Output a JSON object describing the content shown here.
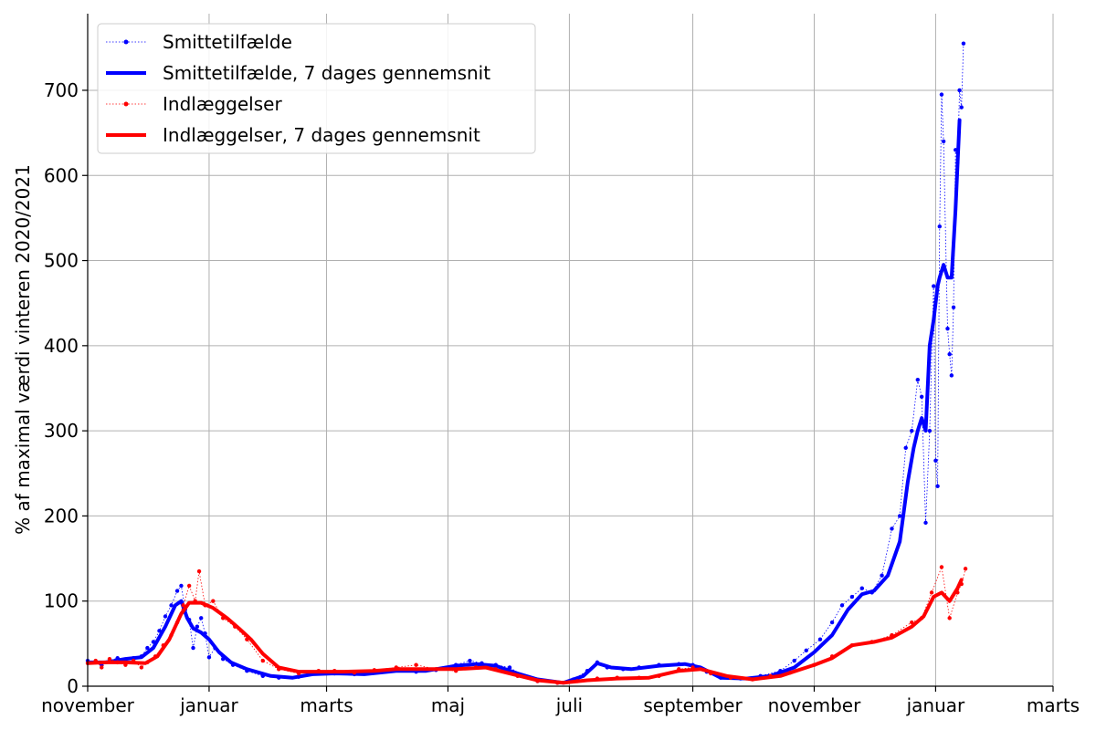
{
  "chart_data": {
    "type": "line",
    "ylabel": "% af maximal værdi vinteren 2020/2021",
    "xlim": [
      "2020-11-01",
      "2022-03-01"
    ],
    "ylim": [
      0,
      790
    ],
    "x_ticks": [
      {
        "date": "2020-11-01",
        "label": "november"
      },
      {
        "date": "2021-01-01",
        "label": "januar"
      },
      {
        "date": "2021-03-01",
        "label": "marts"
      },
      {
        "date": "2021-05-01",
        "label": "maj"
      },
      {
        "date": "2021-07-01",
        "label": "juli"
      },
      {
        "date": "2021-09-01",
        "label": "september"
      },
      {
        "date": "2021-11-01",
        "label": "november"
      },
      {
        "date": "2022-01-01",
        "label": "januar"
      },
      {
        "date": "2022-03-01",
        "label": "marts"
      }
    ],
    "y_ticks": [
      0,
      100,
      200,
      300,
      400,
      500,
      600,
      700
    ],
    "grid": true,
    "legend_position": "top-left",
    "series": [
      {
        "name": "Smittetilfælde",
        "style": "dotted-markers",
        "color": "#0000ff",
        "points": [
          [
            "2020-11-01",
            30
          ],
          [
            "2020-11-05",
            28
          ],
          [
            "2020-11-08",
            25
          ],
          [
            "2020-11-12",
            30
          ],
          [
            "2020-11-16",
            33
          ],
          [
            "2020-11-20",
            31
          ],
          [
            "2020-11-24",
            33
          ],
          [
            "2020-11-28",
            35
          ],
          [
            "2020-12-01",
            45
          ],
          [
            "2020-12-04",
            52
          ],
          [
            "2020-12-07",
            65
          ],
          [
            "2020-12-10",
            82
          ],
          [
            "2020-12-13",
            95
          ],
          [
            "2020-12-16",
            112
          ],
          [
            "2020-12-18",
            118
          ],
          [
            "2020-12-20",
            90
          ],
          [
            "2020-12-22",
            78
          ],
          [
            "2020-12-24",
            45
          ],
          [
            "2020-12-26",
            70
          ],
          [
            "2020-12-28",
            80
          ],
          [
            "2020-12-30",
            62
          ],
          [
            "2021-01-01",
            34
          ],
          [
            "2021-01-04",
            45
          ],
          [
            "2021-01-08",
            32
          ],
          [
            "2021-01-13",
            25
          ],
          [
            "2021-01-20",
            18
          ],
          [
            "2021-01-28",
            12
          ],
          [
            "2021-02-05",
            10
          ],
          [
            "2021-02-15",
            11
          ],
          [
            "2021-02-25",
            15
          ],
          [
            "2021-03-05",
            15
          ],
          [
            "2021-03-15",
            14
          ],
          [
            "2021-03-25",
            16
          ],
          [
            "2021-04-05",
            19
          ],
          [
            "2021-04-15",
            17
          ],
          [
            "2021-04-25",
            19
          ],
          [
            "2021-05-05",
            25
          ],
          [
            "2021-05-12",
            30
          ],
          [
            "2021-05-18",
            27
          ],
          [
            "2021-05-25",
            25
          ],
          [
            "2021-06-01",
            22
          ],
          [
            "2021-06-08",
            12
          ],
          [
            "2021-06-15",
            6
          ],
          [
            "2021-06-25",
            4
          ],
          [
            "2021-07-03",
            8
          ],
          [
            "2021-07-10",
            18
          ],
          [
            "2021-07-15",
            28
          ],
          [
            "2021-07-20",
            22
          ],
          [
            "2021-07-28",
            20
          ],
          [
            "2021-08-05",
            22
          ],
          [
            "2021-08-15",
            25
          ],
          [
            "2021-08-25",
            26
          ],
          [
            "2021-09-01",
            25
          ],
          [
            "2021-09-08",
            17
          ],
          [
            "2021-09-15",
            10
          ],
          [
            "2021-09-25",
            9
          ],
          [
            "2021-10-05",
            12
          ],
          [
            "2021-10-15",
            18
          ],
          [
            "2021-10-22",
            30
          ],
          [
            "2021-10-28",
            42
          ],
          [
            "2021-11-04",
            55
          ],
          [
            "2021-11-10",
            75
          ],
          [
            "2021-11-15",
            95
          ],
          [
            "2021-11-20",
            105
          ],
          [
            "2021-11-25",
            115
          ],
          [
            "2021-11-30",
            110
          ],
          [
            "2021-12-05",
            130
          ],
          [
            "2021-12-10",
            185
          ],
          [
            "2021-12-14",
            200
          ],
          [
            "2021-12-17",
            280
          ],
          [
            "2021-12-20",
            300
          ],
          [
            "2021-12-23",
            360
          ],
          [
            "2021-12-25",
            340
          ],
          [
            "2021-12-27",
            192
          ],
          [
            "2021-12-29",
            300
          ],
          [
            "2021-12-31",
            470
          ],
          [
            "2022-01-01",
            265
          ],
          [
            "2022-01-02",
            235
          ],
          [
            "2022-01-03",
            540
          ],
          [
            "2022-01-04",
            695
          ],
          [
            "2022-01-05",
            640
          ],
          [
            "2022-01-07",
            420
          ],
          [
            "2022-01-08",
            390
          ],
          [
            "2022-01-09",
            365
          ],
          [
            "2022-01-10",
            445
          ],
          [
            "2022-01-11",
            630
          ],
          [
            "2022-01-12",
            615
          ],
          [
            "2022-01-13",
            700
          ],
          [
            "2022-01-14",
            680
          ],
          [
            "2022-01-15",
            755
          ]
        ]
      },
      {
        "name": "Smittetilfælde, 7 dages gennemsnit",
        "style": "thick-line",
        "color": "#0000ff",
        "points": [
          [
            "2020-11-01",
            28
          ],
          [
            "2020-11-10",
            28
          ],
          [
            "2020-11-20",
            32
          ],
          [
            "2020-11-28",
            34
          ],
          [
            "2020-12-04",
            45
          ],
          [
            "2020-12-10",
            70
          ],
          [
            "2020-12-15",
            95
          ],
          [
            "2020-12-18",
            100
          ],
          [
            "2020-12-21",
            80
          ],
          [
            "2020-12-24",
            68
          ],
          [
            "2020-12-28",
            63
          ],
          [
            "2021-01-01",
            55
          ],
          [
            "2021-01-06",
            40
          ],
          [
            "2021-01-12",
            28
          ],
          [
            "2021-01-20",
            20
          ],
          [
            "2021-02-01",
            12
          ],
          [
            "2021-02-12",
            10
          ],
          [
            "2021-02-22",
            14
          ],
          [
            "2021-03-05",
            15
          ],
          [
            "2021-03-20",
            14
          ],
          [
            "2021-04-05",
            18
          ],
          [
            "2021-04-20",
            18
          ],
          [
            "2021-05-05",
            24
          ],
          [
            "2021-05-15",
            26
          ],
          [
            "2021-05-25",
            24
          ],
          [
            "2021-06-05",
            15
          ],
          [
            "2021-06-15",
            8
          ],
          [
            "2021-06-28",
            4
          ],
          [
            "2021-07-08",
            12
          ],
          [
            "2021-07-15",
            27
          ],
          [
            "2021-07-22",
            22
          ],
          [
            "2021-08-01",
            20
          ],
          [
            "2021-08-15",
            24
          ],
          [
            "2021-08-28",
            26
          ],
          [
            "2021-09-05",
            22
          ],
          [
            "2021-09-15",
            10
          ],
          [
            "2021-09-28",
            9
          ],
          [
            "2021-10-10",
            12
          ],
          [
            "2021-10-22",
            22
          ],
          [
            "2021-11-01",
            40
          ],
          [
            "2021-11-10",
            60
          ],
          [
            "2021-11-18",
            90
          ],
          [
            "2021-11-25",
            108
          ],
          [
            "2021-12-01",
            112
          ],
          [
            "2021-12-08",
            130
          ],
          [
            "2021-12-14",
            170
          ],
          [
            "2021-12-18",
            240
          ],
          [
            "2021-12-21",
            280
          ],
          [
            "2021-12-23",
            300
          ],
          [
            "2021-12-25",
            315
          ],
          [
            "2021-12-27",
            300
          ],
          [
            "2021-12-29",
            400
          ],
          [
            "2021-12-31",
            430
          ],
          [
            "2022-01-02",
            470
          ],
          [
            "2022-01-03",
            480
          ],
          [
            "2022-01-05",
            495
          ],
          [
            "2022-01-07",
            480
          ],
          [
            "2022-01-09",
            480
          ],
          [
            "2022-01-11",
            560
          ],
          [
            "2022-01-13",
            665
          ]
        ]
      },
      {
        "name": "Indlæggelser",
        "style": "dotted-markers",
        "color": "#ff0000",
        "points": [
          [
            "2020-11-01",
            27
          ],
          [
            "2020-11-05",
            30
          ],
          [
            "2020-11-08",
            22
          ],
          [
            "2020-11-12",
            32
          ],
          [
            "2020-11-16",
            28
          ],
          [
            "2020-11-20",
            25
          ],
          [
            "2020-11-24",
            30
          ],
          [
            "2020-11-28",
            22
          ],
          [
            "2020-12-01",
            28
          ],
          [
            "2020-12-05",
            35
          ],
          [
            "2020-12-09",
            48
          ],
          [
            "2020-12-13",
            60
          ],
          [
            "2020-12-16",
            75
          ],
          [
            "2020-12-19",
            95
          ],
          [
            "2020-12-22",
            118
          ],
          [
            "2020-12-25",
            100
          ],
          [
            "2020-12-27",
            135
          ],
          [
            "2020-12-30",
            95
          ],
          [
            "2021-01-03",
            100
          ],
          [
            "2021-01-08",
            80
          ],
          [
            "2021-01-14",
            70
          ],
          [
            "2021-01-20",
            55
          ],
          [
            "2021-01-28",
            30
          ],
          [
            "2021-02-05",
            20
          ],
          [
            "2021-02-15",
            15
          ],
          [
            "2021-02-25",
            18
          ],
          [
            "2021-03-05",
            18
          ],
          [
            "2021-03-15",
            16
          ],
          [
            "2021-03-25",
            19
          ],
          [
            "2021-04-05",
            22
          ],
          [
            "2021-04-15",
            25
          ],
          [
            "2021-04-25",
            20
          ],
          [
            "2021-05-05",
            18
          ],
          [
            "2021-05-15",
            22
          ],
          [
            "2021-05-25",
            20
          ],
          [
            "2021-06-05",
            12
          ],
          [
            "2021-06-15",
            6
          ],
          [
            "2021-06-25",
            4
          ],
          [
            "2021-07-05",
            6
          ],
          [
            "2021-07-15",
            9
          ],
          [
            "2021-07-25",
            10
          ],
          [
            "2021-08-05",
            10
          ],
          [
            "2021-08-15",
            12
          ],
          [
            "2021-08-25",
            20
          ],
          [
            "2021-09-01",
            22
          ],
          [
            "2021-09-10",
            15
          ],
          [
            "2021-09-20",
            10
          ],
          [
            "2021-10-01",
            8
          ],
          [
            "2021-10-10",
            12
          ],
          [
            "2021-10-20",
            16
          ],
          [
            "2021-11-01",
            25
          ],
          [
            "2021-11-10",
            35
          ],
          [
            "2021-11-20",
            48
          ],
          [
            "2021-11-30",
            52
          ],
          [
            "2021-12-10",
            60
          ],
          [
            "2021-12-20",
            75
          ],
          [
            "2021-12-25",
            80
          ],
          [
            "2021-12-30",
            110
          ],
          [
            "2022-01-04",
            140
          ],
          [
            "2022-01-08",
            80
          ],
          [
            "2022-01-12",
            110
          ],
          [
            "2022-01-14",
            120
          ],
          [
            "2022-01-16",
            138
          ]
        ]
      },
      {
        "name": "Indlæggelser, 7 dages gennemsnit",
        "style": "thick-line",
        "color": "#ff0000",
        "points": [
          [
            "2020-11-01",
            27
          ],
          [
            "2020-11-10",
            28
          ],
          [
            "2020-11-20",
            28
          ],
          [
            "2020-11-30",
            27
          ],
          [
            "2020-12-06",
            35
          ],
          [
            "2020-12-12",
            55
          ],
          [
            "2020-12-18",
            85
          ],
          [
            "2020-12-22",
            98
          ],
          [
            "2020-12-28",
            98
          ],
          [
            "2021-01-03",
            92
          ],
          [
            "2021-01-10",
            80
          ],
          [
            "2021-01-16",
            68
          ],
          [
            "2021-01-22",
            55
          ],
          [
            "2021-01-28",
            38
          ],
          [
            "2021-02-05",
            22
          ],
          [
            "2021-02-15",
            17
          ],
          [
            "2021-02-25",
            17
          ],
          [
            "2021-03-10",
            17
          ],
          [
            "2021-03-25",
            18
          ],
          [
            "2021-04-05",
            20
          ],
          [
            "2021-04-20",
            20
          ],
          [
            "2021-05-05",
            20
          ],
          [
            "2021-05-20",
            22
          ],
          [
            "2021-06-01",
            15
          ],
          [
            "2021-06-15",
            7
          ],
          [
            "2021-06-28",
            4
          ],
          [
            "2021-07-10",
            7
          ],
          [
            "2021-07-25",
            9
          ],
          [
            "2021-08-10",
            10
          ],
          [
            "2021-08-25",
            18
          ],
          [
            "2021-09-05",
            20
          ],
          [
            "2021-09-18",
            12
          ],
          [
            "2021-10-01",
            8
          ],
          [
            "2021-10-15",
            12
          ],
          [
            "2021-11-01",
            25
          ],
          [
            "2021-11-10",
            33
          ],
          [
            "2021-11-20",
            48
          ],
          [
            "2021-12-01",
            52
          ],
          [
            "2021-12-10",
            57
          ],
          [
            "2021-12-20",
            70
          ],
          [
            "2021-12-26",
            82
          ],
          [
            "2021-12-31",
            105
          ],
          [
            "2022-01-04",
            110
          ],
          [
            "2022-01-08",
            100
          ],
          [
            "2022-01-12",
            115
          ],
          [
            "2022-01-14",
            125
          ]
        ]
      }
    ]
  }
}
